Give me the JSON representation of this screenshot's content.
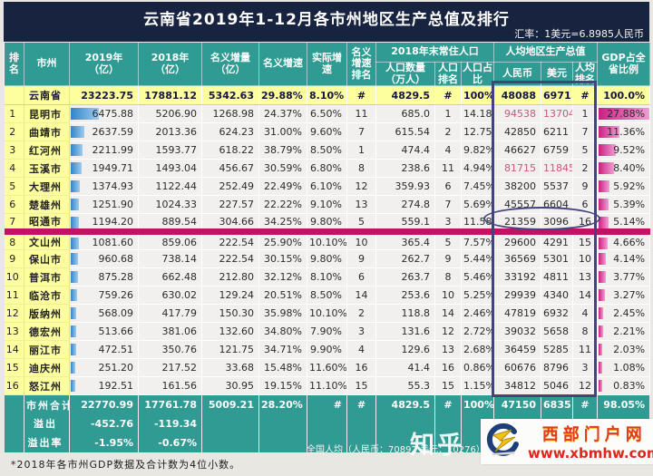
{
  "title": "云南省2019年1-12月各市州地区生产总值及排行",
  "exchange_rate_note": "汇率：1美元=6.8985人民币",
  "table": {
    "headers": {
      "rank": "排名",
      "city": "市州",
      "gdp2019": "2019年\n（亿）",
      "gdp2018": "2018年\n（亿）",
      "increase": "名义增量\n（亿）",
      "nominal_growth": "名义增速",
      "real_growth": "实际增速",
      "growth_rank": "名义增速排名",
      "pop_group": "2018年末常住人口",
      "pop": "人口数量\n（万人）",
      "pop_rank": "人口排名",
      "pop_share": "人口占比",
      "percap_group": "人均地区生产总值",
      "cny": "人民币",
      "usd": "美元",
      "percap_rank": "人均排名",
      "gdp_share": "GDP占全省比例"
    },
    "percap_red_row_indexes": [
      0,
      3
    ],
    "circled_row_rank": "7",
    "bar_max_gdp2019": 6475.88,
    "bar_max_gdp_share": 27.88,
    "colors": {
      "title_bg": "#17233f",
      "header_teal": "#2f9b93",
      "highlight_yellow": "#fdfe9e",
      "blue_bar": "#2f86cc",
      "pink_bar": "#cb1f84",
      "divider_line": "#c31261",
      "annotation_box": "#43437e",
      "red_value_text": "#c75a7b"
    }
  },
  "chart_data": {
    "type": "table",
    "title": "云南省2019年1-12月各市州地区生产总值及排行",
    "columns": [
      "排名",
      "市州",
      "2019年（亿）",
      "2018年（亿）",
      "名义增量（亿）",
      "名义增速",
      "实际增速",
      "名义增速排名",
      "人口数量（万人）",
      "人口排名",
      "人口占比",
      "人均地区生产总值人民币",
      "人均地区生产总值美元",
      "人均排名",
      "GDP占全省比例"
    ],
    "province_row": [
      "",
      "云南省",
      "23223.75",
      "17881.12",
      "5342.63",
      "29.88%",
      "8.10%",
      "#",
      "4829.5",
      "#",
      "100%",
      "48088",
      "6971",
      "#",
      "100.0%"
    ],
    "rows": [
      [
        "1",
        "昆明市",
        "6475.88",
        "5206.90",
        "1268.98",
        "24.37%",
        "6.50%",
        "11",
        "685.0",
        "1",
        "14.18%",
        "94538",
        "13704",
        "1",
        "27.88%"
      ],
      [
        "2",
        "曲靖市",
        "2637.59",
        "2013.36",
        "624.23",
        "31.00%",
        "9.60%",
        "7",
        "615.54",
        "2",
        "12.75%",
        "42850",
        "6211",
        "7",
        "11.36%"
      ],
      [
        "3",
        "红河州",
        "2211.99",
        "1593.77",
        "618.22",
        "38.79%",
        "8.50%",
        "1",
        "474.4",
        "4",
        "9.82%",
        "46627",
        "6759",
        "5",
        "9.52%"
      ],
      [
        "4",
        "玉溪市",
        "1949.71",
        "1493.04",
        "456.67",
        "30.59%",
        "6.80%",
        "8",
        "238.6",
        "11",
        "4.94%",
        "81715",
        "11845",
        "2",
        "8.40%"
      ],
      [
        "5",
        "大理州",
        "1374.93",
        "1122.44",
        "252.49",
        "22.49%",
        "6.10%",
        "12",
        "359.93",
        "6",
        "7.45%",
        "38200",
        "5537",
        "9",
        "5.92%"
      ],
      [
        "6",
        "楚雄州",
        "1251.90",
        "1024.33",
        "227.57",
        "22.22%",
        "9.10%",
        "13",
        "274.8",
        "7",
        "5.69%",
        "45557",
        "6604",
        "6",
        "5.39%"
      ],
      [
        "7",
        "昭通市",
        "1194.20",
        "889.54",
        "304.66",
        "34.25%",
        "9.80%",
        "5",
        "559.1",
        "3",
        "11.58%",
        "21359",
        "3096",
        "16",
        "5.14%"
      ],
      [
        "8",
        "文山州",
        "1081.60",
        "859.06",
        "222.54",
        "25.90%",
        "10.10%",
        "10",
        "365.4",
        "5",
        "7.57%",
        "29600",
        "4291",
        "15",
        "4.66%"
      ],
      [
        "9",
        "保山市",
        "960.68",
        "738.14",
        "222.54",
        "30.15%",
        "9.80%",
        "9",
        "262.7",
        "9",
        "5.44%",
        "36569",
        "5301",
        "10",
        "4.14%"
      ],
      [
        "10",
        "普洱市",
        "875.28",
        "662.48",
        "212.80",
        "32.12%",
        "8.10%",
        "6",
        "263.7",
        "8",
        "5.46%",
        "33192",
        "4811",
        "13",
        "3.77%"
      ],
      [
        "11",
        "临沧市",
        "759.26",
        "630.02",
        "129.24",
        "20.51%",
        "8.50%",
        "14",
        "253.6",
        "10",
        "5.25%",
        "29939",
        "4340",
        "14",
        "3.27%"
      ],
      [
        "12",
        "版纳州",
        "568.09",
        "417.79",
        "150.30",
        "35.98%",
        "10.10%",
        "2",
        "118.8",
        "14",
        "2.46%",
        "47819",
        "6932",
        "4",
        "2.45%"
      ],
      [
        "13",
        "德宏州",
        "513.66",
        "381.06",
        "132.60",
        "34.80%",
        "7.90%",
        "3",
        "131.6",
        "12",
        "2.72%",
        "39032",
        "5658",
        "8",
        "2.21%"
      ],
      [
        "14",
        "丽江市",
        "472.51",
        "350.76",
        "121.75",
        "34.71%",
        "9.90%",
        "4",
        "129.6",
        "13",
        "2.68%",
        "36459",
        "5285",
        "11",
        "2.03%"
      ],
      [
        "15",
        "迪庆州",
        "251.20",
        "217.52",
        "33.68",
        "15.48%",
        "11.60%",
        "16",
        "41.4",
        "16",
        "0.86%",
        "60676",
        "8796",
        "3",
        "1.08%"
      ],
      [
        "16",
        "怒江州",
        "192.51",
        "161.56",
        "30.95",
        "19.15%",
        "11.10%",
        "15",
        "55.3",
        "15",
        "1.15%",
        "34812",
        "5046",
        "12",
        "0.83%"
      ]
    ],
    "summary_rows": [
      [
        "",
        "市州合计",
        "22770.99",
        "17761.78",
        "5009.21",
        "28.20%",
        "#",
        "#",
        "4829.5",
        "#",
        "100%",
        "47150",
        "6835",
        "#",
        "98.05%"
      ],
      [
        "",
        "溢出",
        "-452.76",
        "-119.34",
        "",
        "",
        "",
        "",
        "",
        "",
        "",
        "",
        "",
        "",
        ""
      ],
      [
        "",
        "溢出率",
        "-1.95%",
        "-0.67%",
        "",
        "",
        "",
        "",
        "",
        "",
        "",
        "",
        "",
        "",
        ""
      ]
    ]
  },
  "national_average_note": "全国人均（人民币：70892 美元：10276）",
  "footnote": "*2018年各市州GDP数据及合计数为4位小数。",
  "watermarks": {
    "zhihu": "知乎",
    "site_name": "西部门户网",
    "site_url": "www.xbmhw.com"
  }
}
